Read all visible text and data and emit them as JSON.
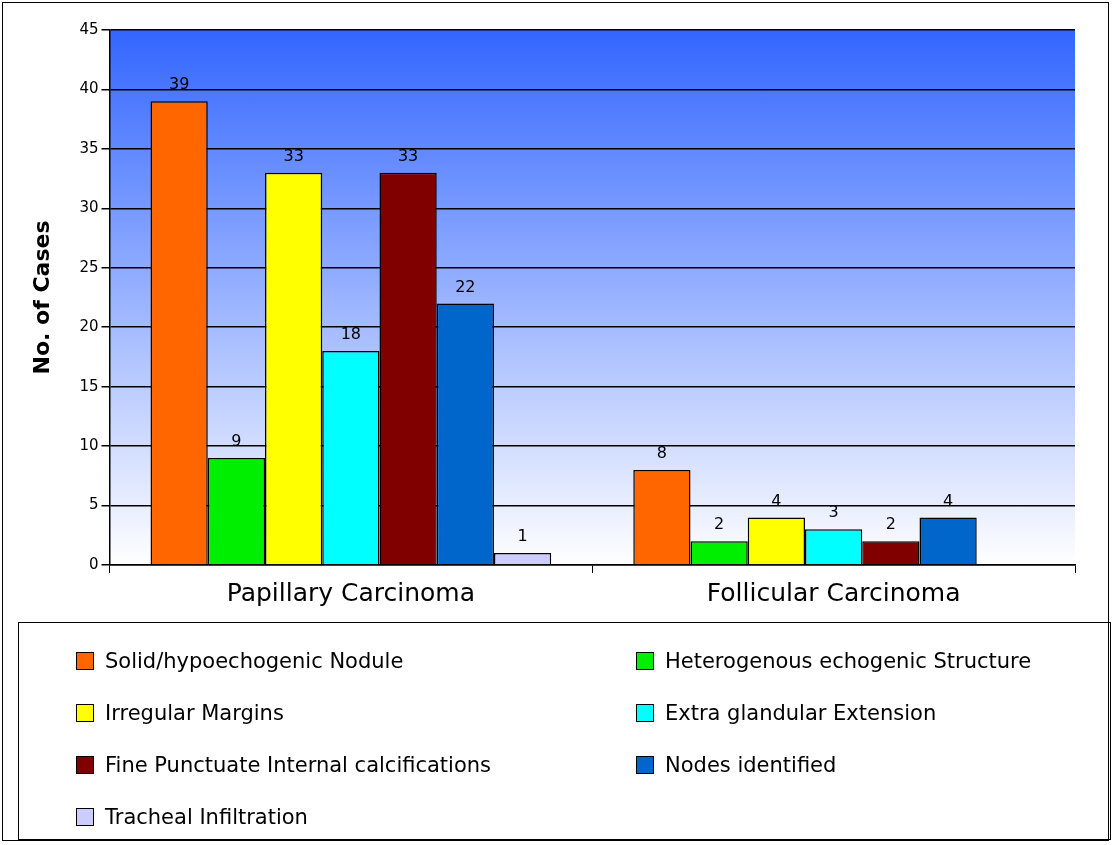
{
  "chart_data": {
    "type": "bar",
    "ylabel": "No. of Cases",
    "categories": [
      "Papillary Carcinoma",
      "Follicular Carcinoma"
    ],
    "series": [
      {
        "name": "Solid/hypoechogenic Nodule",
        "color": "#ff6600",
        "values": [
          39,
          8
        ]
      },
      {
        "name": "Heterogenous echogenic Structure",
        "color": "#00ee00",
        "values": [
          9,
          2
        ]
      },
      {
        "name": "Irregular Margins",
        "color": "#ffff00",
        "values": [
          33,
          4
        ]
      },
      {
        "name": "Extra glandular Extension",
        "color": "#00ffff",
        "values": [
          18,
          3
        ]
      },
      {
        "name": "Fine Punctuate Internal calcifications",
        "color": "#800000",
        "values": [
          33,
          2
        ]
      },
      {
        "name": "Nodes identified",
        "color": "#0066cc",
        "values": [
          22,
          4
        ]
      },
      {
        "name": "Tracheal Infiltration",
        "color": "#ccccff",
        "values": [
          1,
          null
        ]
      }
    ],
    "ylim": [
      0,
      45
    ],
    "yticks": [
      0,
      5,
      10,
      15,
      20,
      25,
      30,
      35,
      40,
      45
    ],
    "grid": "y",
    "legend": "bottom",
    "data_labels": true
  }
}
